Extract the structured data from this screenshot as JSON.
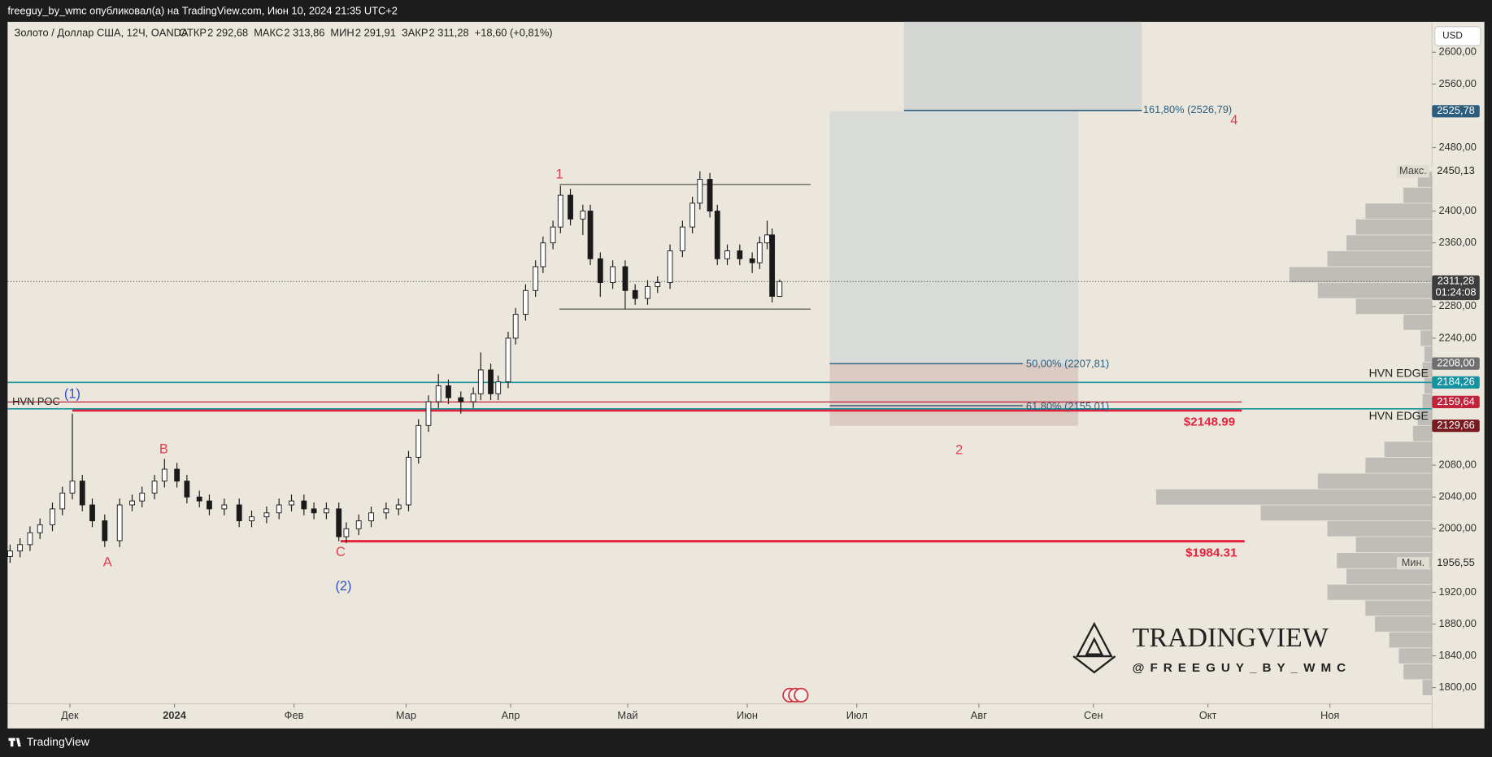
{
  "header": {
    "text": "freeguy_by_wmc опубликовал(а) на TradingView.com, Июн 10, 2024 21:35 UTC+2"
  },
  "chart_data": {
    "type": "candlestick",
    "title": "Золото / Доллар США, 12Ч, OANDA",
    "ohlc_legend": [
      "ОТКР",
      "2 292,68",
      "МАКС",
      "2 313,86",
      "МИН",
      "2 291,91",
      "ЗАКР",
      "2 311,28",
      "+18,60 (+0,81%)"
    ],
    "currency": "USD",
    "up_color": "#ffffff",
    "down_color": "#1a1a1a",
    "x": [
      -24,
      -20,
      -16,
      -12,
      -7,
      -3,
      1,
      5,
      9,
      14,
      20,
      25,
      29,
      34,
      38,
      43,
      47,
      52,
      56,
      62,
      68,
      73,
      79,
      84,
      89,
      94,
      98,
      103,
      108,
      111,
      116,
      121,
      127,
      132,
      136,
      140,
      144,
      148,
      152,
      157,
      162,
      165,
      169,
      172,
      176,
      179,
      183,
      187,
      190,
      194,
      197,
      201,
      206,
      209,
      213,
      218,
      223,
      227,
      232,
      236,
      241,
      246,
      250,
      253,
      257,
      260,
      264,
      269,
      274,
      277,
      280,
      282,
      285
    ],
    "open": [
      1965,
      1972,
      1980,
      1995,
      2005,
      2025,
      2045,
      2060,
      2030,
      2010,
      1985,
      2030,
      2035,
      2045,
      2060,
      2075,
      2060,
      2040,
      2035,
      2025,
      2030,
      2010,
      2015,
      2020,
      2030,
      2035,
      2025,
      2020,
      2025,
      1990,
      2000,
      2010,
      2020,
      2025,
      2030,
      2090,
      2130,
      2160,
      2180,
      2165,
      2160,
      2170,
      2200,
      2170,
      2185,
      2240,
      2270,
      2300,
      2330,
      2360,
      2380,
      2420,
      2390,
      2400,
      2340,
      2310,
      2330,
      2300,
      2290,
      2305,
      2310,
      2350,
      2380,
      2410,
      2440,
      2400,
      2340,
      2350,
      2340,
      2335,
      2360,
      2370,
      2292.68
    ],
    "high": [
      1980,
      1988,
      2003,
      2013,
      2033,
      2053,
      2145,
      2068,
      2038,
      2018,
      2038,
      2043,
      2053,
      2068,
      2088,
      2083,
      2068,
      2048,
      2043,
      2038,
      2038,
      2023,
      2028,
      2038,
      2043,
      2043,
      2033,
      2033,
      2033,
      2008,
      2018,
      2028,
      2033,
      2038,
      2098,
      2138,
      2168,
      2195,
      2188,
      2173,
      2178,
      2222,
      2208,
      2193,
      2248,
      2278,
      2308,
      2338,
      2368,
      2388,
      2432,
      2428,
      2408,
      2408,
      2348,
      2338,
      2338,
      2308,
      2313,
      2318,
      2358,
      2388,
      2418,
      2450.13,
      2448,
      2408,
      2358,
      2358,
      2348,
      2368,
      2388,
      2378,
      2313.86
    ],
    "low": [
      1957,
      1964,
      1972,
      1987,
      1997,
      2017,
      2037,
      2022,
      2002,
      1977,
      1977,
      2022,
      2027,
      2037,
      2052,
      2052,
      2032,
      2027,
      2017,
      2017,
      2002,
      2002,
      2007,
      2012,
      2022,
      2017,
      2012,
      2012,
      1984.31,
      1982,
      1992,
      2002,
      2012,
      2017,
      2022,
      2082,
      2122,
      2152,
      2157,
      2145,
      2152,
      2162,
      2162,
      2162,
      2177,
      2232,
      2262,
      2292,
      2322,
      2352,
      2372,
      2382,
      2370,
      2332,
      2292,
      2302,
      2277,
      2282,
      2282,
      2297,
      2302,
      2342,
      2372,
      2402,
      2392,
      2332,
      2332,
      2332,
      2322,
      2327,
      2352,
      2285,
      2291.91
    ],
    "close": [
      1972,
      1980,
      1995,
      2005,
      2025,
      2045,
      2060,
      2030,
      2010,
      1985,
      2030,
      2035,
      2045,
      2060,
      2075,
      2060,
      2040,
      2035,
      2025,
      2030,
      2010,
      2015,
      2020,
      2030,
      2035,
      2025,
      2020,
      2025,
      1990,
      2000,
      2010,
      2020,
      2025,
      2030,
      2090,
      2130,
      2160,
      2180,
      2165,
      2160,
      2170,
      2200,
      2170,
      2185,
      2240,
      2270,
      2300,
      2330,
      2360,
      2380,
      2420,
      2390,
      2400,
      2340,
      2310,
      2330,
      2300,
      2290,
      2305,
      2310,
      2350,
      2380,
      2410,
      2440,
      2400,
      2340,
      2350,
      2340,
      2335,
      2360,
      2370,
      2292.68,
      2311.28
    ],
    "xlim": [
      -25,
      547
    ],
    "xticks": [
      {
        "value": 0,
        "label": "Дек"
      },
      {
        "value": 42,
        "label": "2024"
      },
      {
        "value": 90,
        "label": "Фев"
      },
      {
        "value": 135,
        "label": "Мар"
      },
      {
        "value": 177,
        "label": "Апр"
      },
      {
        "value": 224,
        "label": "Май"
      },
      {
        "value": 272,
        "label": "Июн"
      },
      {
        "value": 316,
        "label": "Июл"
      },
      {
        "value": 365,
        "label": "Авг"
      },
      {
        "value": 411,
        "label": "Сен"
      },
      {
        "value": 457,
        "label": "Окт"
      },
      {
        "value": 506,
        "label": "Ноя"
      }
    ],
    "ylim": [
      1749.7,
      2638.3
    ],
    "yticks": [
      {
        "value": 2600,
        "label": "2600,00"
      },
      {
        "value": 2560,
        "label": "2560,00"
      },
      {
        "value": 2480,
        "label": "2480,00"
      },
      {
        "value": 2400,
        "label": "2400,00"
      },
      {
        "value": 2360,
        "label": "2360,00"
      },
      {
        "value": 2280,
        "label": "2280,00"
      },
      {
        "value": 2240,
        "label": "2240,00"
      },
      {
        "value": 2080,
        "label": "2080,00"
      },
      {
        "value": 2040,
        "label": "2040,00"
      },
      {
        "value": 2000,
        "label": "2000,00"
      },
      {
        "value": 1920,
        "label": "1920,00"
      },
      {
        "value": 1880,
        "label": "1880,00"
      },
      {
        "value": 1840,
        "label": "1840,00"
      },
      {
        "value": 1800,
        "label": "1800,00"
      }
    ],
    "price_labels": [
      {
        "value": 2525.78,
        "label": "2525,78",
        "color": "#2a5d80",
        "text_color": "#ffffff"
      },
      {
        "value": 2450.13,
        "label": "2450,13",
        "color": "#ebe7dc",
        "text_color": "#222222",
        "note": "Макс."
      },
      {
        "value": 2311.28,
        "label": "2311,28",
        "color": "#3d3d3d",
        "text_color": "#ffffff",
        "sublabel": "01:24:08"
      },
      {
        "value": 2208.0,
        "label": "2208,00",
        "color": "#6f6f6f",
        "text_color": "#ffffff"
      },
      {
        "value": 2184.26,
        "label": "2184,26",
        "color": "#1592a0",
        "text_color": "#ffffff"
      },
      {
        "value": 2159.64,
        "label": "2159,64",
        "color": "#c0243a",
        "text_color": "#ffffff"
      },
      {
        "value": 2129.66,
        "label": "2129,66",
        "color": "#7a1a1f",
        "text_color": "#ffffff"
      },
      {
        "value": 1956.55,
        "label": "1956,55",
        "color": "#ebe7dc",
        "text_color": "#222222",
        "note": "Мин."
      }
    ],
    "hlines": [
      {
        "value": 2184.26,
        "color": "#1592a0"
      },
      {
        "value": 2159.64,
        "color": "#c0243a"
      },
      {
        "value": 2148.99,
        "color": "#e3243c"
      },
      {
        "value": 2151,
        "color": "#1592a0"
      },
      {
        "value": 1984.31,
        "color": "#e3243c"
      },
      {
        "value": 2526.79,
        "color": "#2a5d80"
      },
      {
        "value": 2207.81,
        "color": "#2a5d80"
      },
      {
        "value": 2155.01,
        "color": "#2a5d80"
      }
    ],
    "annotations": [
      {
        "text": "1",
        "color": "#e04050"
      },
      {
        "text": "2",
        "color": "#e04050"
      },
      {
        "text": "4",
        "color": "#e04050"
      },
      {
        "text": "A",
        "color": "#e04050"
      },
      {
        "text": "B",
        "color": "#e04050"
      },
      {
        "text": "C",
        "color": "#e04050"
      },
      {
        "text": "(1)",
        "color": "#2f4fc8"
      },
      {
        "text": "(2)",
        "color": "#2f4fc8"
      },
      {
        "text": "HVN POC",
        "color": "#222222"
      },
      {
        "text": "HVN EDGE",
        "color": "#222222"
      },
      {
        "text": "HVN EDGE",
        "color": "#222222"
      },
      {
        "text": "$2148.99",
        "color": "#e3243c"
      },
      {
        "text": "$1984.31",
        "color": "#e3243c"
      },
      {
        "text": "161,80% (2526,79)",
        "color": "#2a5d80"
      },
      {
        "text": "50,00% (2207,81)",
        "color": "#2a5d80"
      },
      {
        "text": "61,80% (2155,01)",
        "color": "#2a5d80"
      }
    ],
    "volume_profile": {
      "prices": [
        1800,
        1820,
        1840,
        1860,
        1880,
        1900,
        1920,
        1940,
        1960,
        1980,
        2000,
        2020,
        2040,
        2060,
        2080,
        2100,
        2120,
        2140,
        2160,
        2180,
        2200,
        2220,
        2240,
        2260,
        2280,
        2300,
        2320,
        2340,
        2360,
        2380,
        2400,
        2420,
        2440
      ],
      "values": [
        10,
        30,
        35,
        45,
        60,
        70,
        110,
        90,
        100,
        80,
        110,
        180,
        290,
        120,
        70,
        50,
        20,
        15,
        10,
        8,
        10,
        8,
        12,
        30,
        80,
        120,
        150,
        110,
        90,
        80,
        70,
        30,
        15
      ],
      "color": "#9a9a9a"
    },
    "watermark": {
      "title": "TRADINGVIEW",
      "handle": "@FREEGUY_BY_WMC"
    }
  },
  "footer": {
    "brand": "TradingView"
  }
}
